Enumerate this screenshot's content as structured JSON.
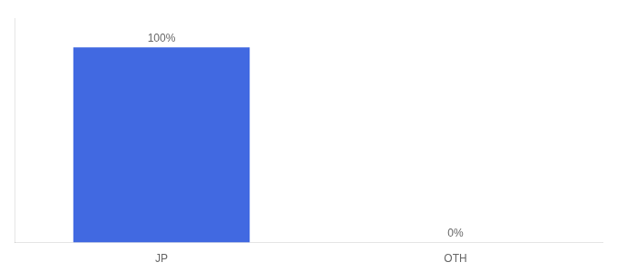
{
  "chart_data": {
    "type": "bar",
    "categories": [
      "JP",
      "OTH"
    ],
    "values": [
      100,
      0
    ],
    "value_labels": [
      "100%",
      "0%"
    ],
    "color": "#4169e1",
    "ylim": [
      0,
      115
    ],
    "grid": false,
    "data_labels": true,
    "tick_labels": "x"
  }
}
